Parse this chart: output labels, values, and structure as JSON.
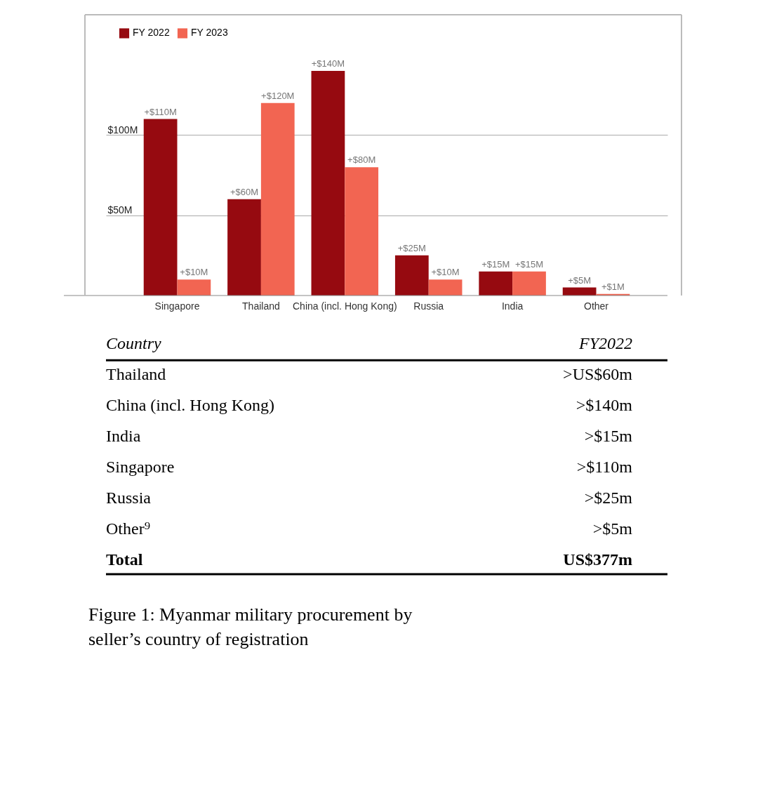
{
  "chart_data": {
    "type": "bar",
    "categories": [
      "Singapore",
      "Thailand",
      "China (incl. Hong Kong)",
      "Russia",
      "India",
      "Other"
    ],
    "series": [
      {
        "name": "FY 2022",
        "color": "#960a10",
        "values": [
          110,
          60,
          140,
          25,
          15,
          5
        ],
        "value_labels": [
          "+$110M",
          "+$60M",
          "+$140M",
          "+$25M",
          "+$15M",
          "+$5M"
        ]
      },
      {
        "name": "FY 2023",
        "color": "#f26552",
        "values": [
          10,
          120,
          80,
          10,
          15,
          1
        ],
        "value_labels": [
          "+$10M",
          "+$120M",
          "+$80M",
          "+$10M",
          "+$15M",
          "+$1M"
        ]
      }
    ],
    "ylim": [
      0,
      175
    ],
    "yticks": [
      {
        "value": 50,
        "label": "$50M"
      },
      {
        "value": 100,
        "label": "$100M"
      }
    ],
    "grid": "y",
    "legend": "top left",
    "annotations": [
      "Country",
      "FY2022",
      "Thailand",
      ">US$60m",
      "China (incl. Hong Kong)",
      ">$140m",
      "India",
      ">$15m",
      "Singapore",
      ">$110m",
      "Russia",
      ">$25m",
      "Other⁹",
      ">$5m",
      "Total",
      "US$377m",
      "Figure 1: Myanmar military procurement by seller’s country of registration"
    ]
  }
}
